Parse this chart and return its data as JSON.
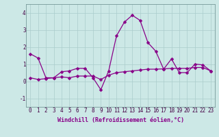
{
  "x": [
    0,
    1,
    2,
    3,
    4,
    5,
    6,
    7,
    8,
    9,
    10,
    11,
    12,
    13,
    14,
    15,
    16,
    17,
    18,
    19,
    20,
    21,
    22,
    23
  ],
  "line1": [
    1.6,
    1.35,
    0.2,
    0.2,
    0.55,
    0.6,
    0.75,
    0.75,
    0.2,
    -0.5,
    0.6,
    2.65,
    3.45,
    3.85,
    3.55,
    2.25,
    1.75,
    0.7,
    1.3,
    0.5,
    0.5,
    1.0,
    0.95,
    0.6
  ],
  "line2": [
    0.2,
    0.1,
    0.15,
    0.2,
    0.25,
    0.2,
    0.3,
    0.3,
    0.3,
    0.1,
    0.35,
    0.5,
    0.55,
    0.6,
    0.65,
    0.7,
    0.7,
    0.72,
    0.75,
    0.75,
    0.75,
    0.8,
    0.8,
    0.6
  ],
  "bg_color": "#cce8e6",
  "grid_color": "#aacccc",
  "line_color": "#880088",
  "xlabel": "Windchill (Refroidissement éolien,°C)",
  "ylim": [
    -1.5,
    4.5
  ],
  "xlim": [
    -0.5,
    23.5
  ],
  "yticks": [
    -1,
    0,
    1,
    2,
    3,
    4
  ],
  "xticks": [
    0,
    1,
    2,
    3,
    4,
    5,
    6,
    7,
    8,
    9,
    10,
    11,
    12,
    13,
    14,
    15,
    16,
    17,
    18,
    19,
    20,
    21,
    22,
    23
  ],
  "tick_fontsize": 5.5,
  "xlabel_fontsize": 6.0,
  "marker_size": 2.5,
  "line_width": 0.9
}
